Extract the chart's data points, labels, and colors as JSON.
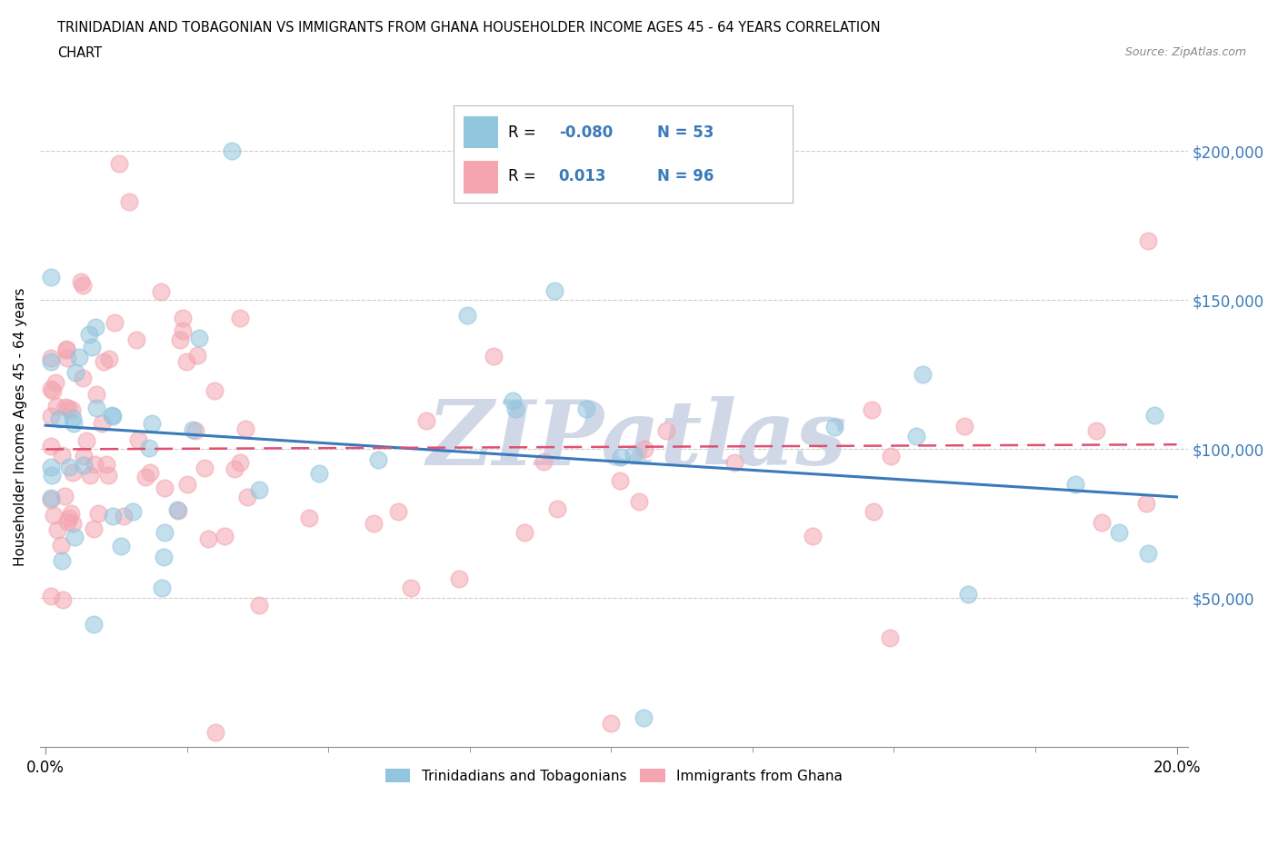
{
  "title_line1": "TRINIDADIAN AND TOBAGONIAN VS IMMIGRANTS FROM GHANA HOUSEHOLDER INCOME AGES 45 - 64 YEARS CORRELATION",
  "title_line2": "CHART",
  "source_text": "Source: ZipAtlas.com",
  "ylabel": "Householder Income Ages 45 - 64 years",
  "x_min": 0.0,
  "x_max": 0.2,
  "y_min": 0,
  "y_max": 210000,
  "y_ticks": [
    50000,
    100000,
    150000,
    200000
  ],
  "y_tick_labels": [
    "$50,000",
    "$100,000",
    "$150,000",
    "$200,000"
  ],
  "x_tick_positions": [
    0.0,
    0.2
  ],
  "x_tick_labels": [
    "0.0%",
    "20.0%"
  ],
  "x_minor_ticks": [
    0.025,
    0.05,
    0.075,
    0.1,
    0.125,
    0.15,
    0.175
  ],
  "legend_label1": "Trinidadians and Tobagonians",
  "legend_label2": "Immigrants from Ghana",
  "R1": "-0.080",
  "N1": "53",
  "R2": "0.013",
  "N2": "96",
  "color1": "#92c5de",
  "color2": "#f4a5b0",
  "line_color1": "#3a7aba",
  "line_color2": "#e05070",
  "watermark": "ZIPatlas",
  "watermark_color": "#d0d8e8",
  "bg_color": "#ffffff",
  "grid_color": "#cccccc"
}
